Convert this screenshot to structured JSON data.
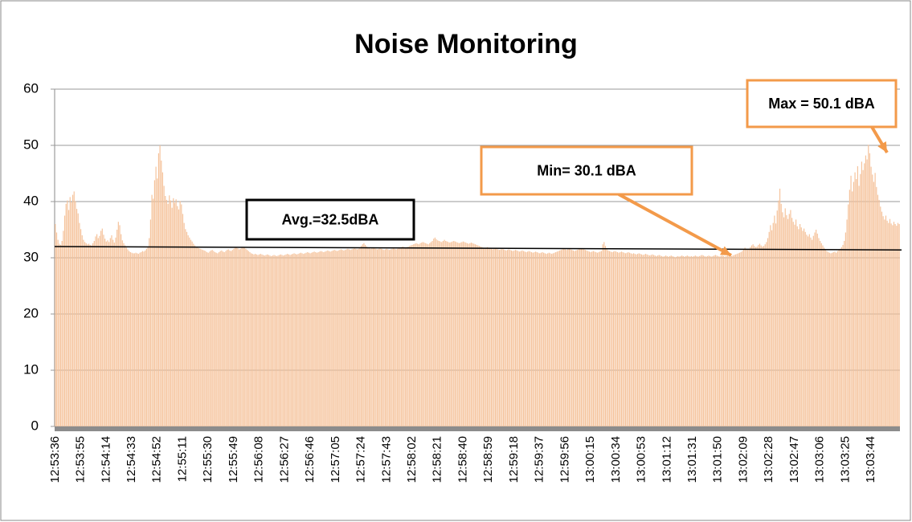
{
  "chart_data": {
    "type": "bar",
    "title": "Noise Monitoring",
    "color": "#f5c29a",
    "ylim": [
      0,
      60
    ],
    "yticks": [
      0,
      10,
      20,
      30,
      40,
      50,
      60
    ],
    "grid": true,
    "trend_line": [
      32.0,
      31.4
    ],
    "annotations": [
      {
        "text": "Avg.=32.5dBA"
      },
      {
        "text": "Min= 30.1 dBA"
      },
      {
        "text": "Max = 50.1 dBA"
      }
    ],
    "categories": [
      "12:53:36",
      null,
      null,
      null,
      null,
      null,
      null,
      null,
      null,
      null,
      null,
      null,
      null,
      null,
      null,
      null,
      null,
      null,
      null,
      "12:53:55",
      null,
      null,
      null,
      null,
      null,
      null,
      null,
      null,
      null,
      null,
      null,
      null,
      null,
      null,
      null,
      null,
      null,
      null,
      "12:54:14",
      null,
      null,
      null,
      null,
      null,
      null,
      null,
      null,
      null,
      null,
      null,
      null,
      null,
      null,
      null,
      null,
      null,
      null,
      "12:54:33",
      null,
      null,
      null,
      null,
      null,
      null,
      null,
      null,
      null,
      null,
      null,
      null,
      null,
      null,
      null,
      null,
      null,
      null,
      "12:54:52",
      null,
      null,
      null,
      null,
      null,
      null,
      null,
      null,
      null,
      null,
      null,
      null,
      null,
      null,
      null,
      null,
      null,
      null,
      "12:55:11",
      null,
      null,
      null,
      null,
      null,
      null,
      null,
      null,
      null,
      null,
      null,
      null,
      null,
      null,
      null,
      null,
      null,
      null,
      "12:55:30",
      null,
      null,
      null,
      null,
      null,
      null,
      null,
      null,
      null,
      null,
      null,
      null,
      null,
      null,
      null,
      null,
      null,
      null,
      "12:55:49",
      null,
      null,
      null,
      null,
      null,
      null,
      null,
      null,
      null,
      null,
      null,
      null,
      null,
      null,
      null,
      null,
      null,
      null,
      "12:56:08",
      null,
      null,
      null,
      null,
      null,
      null,
      null,
      null,
      null,
      null,
      null,
      null,
      null,
      null,
      null,
      null,
      null,
      null,
      "12:56:27",
      null,
      null,
      null,
      null,
      null,
      null,
      null,
      null,
      null,
      null,
      null,
      null,
      null,
      null,
      null,
      null,
      null,
      null,
      "12:56:46",
      null,
      null,
      null,
      null,
      null,
      null,
      null,
      null,
      null,
      null,
      null,
      null,
      null,
      null,
      null,
      null,
      null,
      null,
      "12:57:05",
      null,
      null,
      null,
      null,
      null,
      null,
      null,
      null,
      null,
      null,
      null,
      null,
      null,
      null,
      null,
      null,
      null,
      null,
      "12:57:24",
      null,
      null,
      null,
      null,
      null,
      null,
      null,
      null,
      null,
      null,
      null,
      null,
      null,
      null,
      null,
      null,
      null,
      null,
      "12:57:43",
      null,
      null,
      null,
      null,
      null,
      null,
      null,
      null,
      null,
      null,
      null,
      null,
      null,
      null,
      null,
      null,
      null,
      null,
      "12:58:02",
      null,
      null,
      null,
      null,
      null,
      null,
      null,
      null,
      null,
      null,
      null,
      null,
      null,
      null,
      null,
      null,
      null,
      null,
      "12:58:21",
      null,
      null,
      null,
      null,
      null,
      null,
      null,
      null,
      null,
      null,
      null,
      null,
      null,
      null,
      null,
      null,
      null,
      null,
      "12:58:40",
      null,
      null,
      null,
      null,
      null,
      null,
      null,
      null,
      null,
      null,
      null,
      null,
      null,
      null,
      null,
      null,
      null,
      null,
      "12:58:59",
      null,
      null,
      null,
      null,
      null,
      null,
      null,
      null,
      null,
      null,
      null,
      null,
      null,
      null,
      null,
      null,
      null,
      null,
      "12:59:18",
      null,
      null,
      null,
      null,
      null,
      null,
      null,
      null,
      null,
      null,
      null,
      null,
      null,
      null,
      null,
      null,
      null,
      null,
      "12:59:37",
      null,
      null,
      null,
      null,
      null,
      null,
      null,
      null,
      null,
      null,
      null,
      null,
      null,
      null,
      null,
      null,
      null,
      null,
      "12:59:56",
      null,
      null,
      null,
      null,
      null,
      null,
      null,
      null,
      null,
      null,
      null,
      null,
      null,
      null,
      null,
      null,
      null,
      null,
      "13:00:15",
      null,
      null,
      null,
      null,
      null,
      null,
      null,
      null,
      null,
      null,
      null,
      null,
      null,
      null,
      null,
      null,
      null,
      null,
      "13:00:34",
      null,
      null,
      null,
      null,
      null,
      null,
      null,
      null,
      null,
      null,
      null,
      null,
      null,
      null,
      null,
      null,
      null,
      null,
      "13:00:53",
      null,
      null,
      null,
      null,
      null,
      null,
      null,
      null,
      null,
      null,
      null,
      null,
      null,
      null,
      null,
      null,
      null,
      null,
      "13:01:12",
      null,
      null,
      null,
      null,
      null,
      null,
      null,
      null,
      null,
      null,
      null,
      null,
      null,
      null,
      null,
      null,
      null,
      null,
      "13:01:31",
      null,
      null,
      null,
      null,
      null,
      null,
      null,
      null,
      null,
      null,
      null,
      null,
      null,
      null,
      null,
      null,
      null,
      null,
      "13:01:50",
      null,
      null,
      null,
      null,
      null,
      null,
      null,
      null,
      null,
      null,
      null,
      null,
      null,
      null,
      null,
      null,
      null,
      null,
      "13:02:09",
      null,
      null,
      null,
      null,
      null,
      null,
      null,
      null,
      null,
      null,
      null,
      null,
      null,
      null,
      null,
      null,
      null,
      null,
      "13:02:28",
      null,
      null,
      null,
      null,
      null,
      null,
      null,
      null,
      null,
      null,
      null,
      null,
      null,
      null,
      null,
      null,
      null,
      null,
      "13:02:47",
      null,
      null,
      null,
      null,
      null,
      null,
      null,
      null,
      null,
      null,
      null,
      null,
      null,
      null,
      null,
      null,
      null,
      null,
      "13:03:06",
      null,
      null,
      null,
      null,
      null,
      null,
      null,
      null,
      null,
      null,
      null,
      null,
      null,
      null,
      null,
      null,
      null,
      null,
      "13:03:25",
      null,
      null,
      null,
      null,
      null,
      null,
      null,
      null,
      null,
      null,
      null,
      null,
      null,
      null,
      null,
      null,
      null,
      null,
      "13:03:44",
      null,
      null,
      null,
      null,
      null,
      null,
      null,
      null,
      null,
      null,
      null,
      null,
      null,
      null,
      null,
      null,
      null,
      null,
      null,
      null,
      null
    ],
    "values": [
      36.0,
      34.5,
      33.2,
      32.5,
      32.3,
      33.0,
      34.8,
      37.5,
      39.6,
      40.2,
      38.5,
      40.8,
      39.9,
      41.2,
      41.8,
      40.1,
      38.7,
      37.9,
      36.2,
      35.1,
      34.0,
      33.2,
      32.8,
      32.6,
      32.4,
      32.5,
      32.3,
      32.2,
      32.6,
      33.0,
      33.8,
      34.2,
      33.5,
      33.9,
      34.8,
      35.2,
      34.1,
      33.4,
      32.9,
      33.1,
      32.8,
      33.5,
      34.0,
      33.2,
      32.7,
      33.6,
      35.0,
      36.4,
      35.8,
      34.2,
      33.1,
      32.6,
      32.2,
      31.8,
      31.5,
      31.2,
      31.0,
      30.9,
      30.8,
      30.8,
      30.9,
      30.8,
      30.7,
      30.9,
      31.0,
      31.2,
      31.1,
      31.3,
      31.6,
      32.0,
      33.5,
      36.8,
      41.2,
      40.5,
      43.8,
      46.2,
      44.1,
      48.6,
      50.0,
      47.3,
      45.2,
      42.8,
      41.0,
      40.3,
      39.6,
      41.1,
      40.2,
      38.9,
      40.6,
      39.8,
      40.4,
      39.2,
      38.6,
      40.1,
      39.5,
      37.8,
      36.2,
      35.1,
      34.6,
      34.0,
      33.6,
      33.2,
      32.9,
      32.5,
      32.2,
      32.0,
      31.8,
      31.7,
      31.6,
      31.5,
      31.4,
      31.3,
      31.2,
      31.0,
      30.9,
      31.1,
      31.3,
      31.4,
      31.2,
      31.0,
      30.9,
      30.8,
      31.0,
      31.2,
      31.3,
      31.1,
      31.0,
      31.2,
      31.4,
      31.5,
      31.3,
      31.2,
      31.4,
      31.6,
      31.8,
      31.9,
      31.7,
      31.5,
      31.6,
      31.8,
      31.9,
      31.8,
      31.6,
      31.4,
      31.2,
      31.0,
      30.8,
      30.7,
      30.6,
      30.7,
      30.6,
      30.5,
      30.6,
      30.7,
      30.6,
      30.5,
      30.4,
      30.5,
      30.6,
      30.5,
      30.4,
      30.3,
      30.4,
      30.5,
      30.4,
      30.3,
      30.4,
      30.5,
      30.6,
      30.5,
      30.4,
      30.5,
      30.6,
      30.7,
      30.6,
      30.5,
      30.6,
      30.7,
      30.8,
      30.7,
      30.6,
      30.7,
      30.8,
      30.9,
      30.8,
      30.7,
      30.8,
      30.9,
      31.0,
      30.9,
      30.8,
      30.9,
      31.0,
      31.1,
      31.0,
      30.9,
      31.0,
      31.1,
      31.2,
      31.1,
      31.0,
      31.1,
      31.2,
      31.3,
      31.2,
      31.1,
      31.2,
      31.3,
      31.4,
      31.3,
      31.2,
      31.3,
      31.4,
      31.5,
      31.4,
      31.3,
      31.4,
      31.5,
      31.6,
      31.5,
      31.4,
      31.5,
      31.6,
      31.7,
      31.6,
      31.5,
      31.6,
      31.8,
      32.1,
      32.4,
      32.6,
      32.3,
      32.0,
      31.8,
      31.7,
      31.6,
      31.7,
      31.8,
      31.7,
      31.6,
      31.5,
      31.6,
      31.7,
      31.6,
      31.5,
      31.4,
      31.5,
      31.6,
      31.5,
      31.4,
      31.5,
      31.6,
      31.7,
      31.6,
      31.5,
      31.6,
      31.7,
      31.8,
      31.9,
      32.0,
      31.9,
      31.8,
      31.9,
      32.0,
      32.1,
      32.2,
      32.3,
      32.4,
      32.5,
      32.6,
      32.5,
      32.4,
      32.6,
      32.7,
      32.8,
      32.7,
      32.6,
      32.5,
      32.4,
      32.6,
      32.8,
      33.0,
      33.4,
      33.6,
      33.3,
      33.1,
      33.0,
      32.9,
      32.8,
      33.0,
      33.2,
      33.0,
      32.9,
      32.8,
      32.7,
      32.8,
      32.9,
      33.0,
      32.9,
      32.8,
      32.7,
      32.6,
      32.7,
      32.8,
      32.9,
      32.8,
      32.7,
      32.6,
      32.5,
      32.6,
      32.7,
      32.6,
      32.5,
      32.4,
      32.3,
      32.2,
      32.1,
      32.0,
      31.9,
      31.8,
      31.7,
      31.8,
      31.9,
      31.8,
      31.7,
      31.6,
      31.5,
      31.6,
      31.7,
      31.6,
      31.5,
      31.4,
      31.5,
      31.6,
      31.5,
      31.4,
      31.3,
      31.4,
      31.5,
      31.4,
      31.3,
      31.2,
      31.3,
      31.4,
      31.3,
      31.2,
      31.1,
      31.2,
      31.3,
      31.2,
      31.1,
      31.0,
      31.1,
      31.2,
      31.1,
      31.0,
      30.9,
      31.0,
      31.1,
      31.0,
      30.9,
      30.8,
      30.9,
      31.0,
      30.9,
      30.8,
      30.7,
      30.8,
      30.9,
      30.8,
      30.7,
      30.8,
      30.9,
      31.0,
      31.1,
      31.2,
      31.3,
      31.4,
      31.5,
      31.6,
      31.5,
      31.4,
      31.5,
      31.6,
      31.5,
      31.4,
      31.3,
      31.2,
      31.3,
      31.4,
      31.5,
      31.6,
      31.7,
      31.6,
      31.5,
      31.4,
      31.3,
      31.2,
      31.1,
      31.0,
      31.1,
      31.2,
      31.1,
      31.0,
      30.9,
      31.0,
      31.1,
      31.2,
      32.4,
      32.8,
      32.1,
      31.6,
      31.3,
      31.2,
      31.1,
      31.0,
      31.1,
      31.2,
      31.1,
      31.0,
      30.9,
      31.0,
      31.1,
      31.0,
      30.9,
      30.8,
      30.9,
      31.0,
      30.9,
      30.8,
      30.7,
      30.8,
      30.7,
      30.6,
      30.7,
      30.8,
      30.7,
      30.6,
      30.5,
      30.6,
      30.7,
      30.6,
      30.5,
      30.4,
      30.5,
      30.6,
      30.5,
      30.4,
      30.3,
      30.4,
      30.5,
      30.4,
      30.3,
      30.2,
      30.3,
      30.4,
      30.3,
      30.2,
      30.3,
      30.4,
      30.3,
      30.2,
      30.1,
      30.2,
      30.3,
      30.2,
      30.3,
      30.4,
      30.3,
      30.2,
      30.3,
      30.4,
      30.3,
      30.2,
      30.3,
      30.2,
      30.3,
      30.4,
      30.3,
      30.2,
      30.3,
      30.4,
      30.5,
      30.4,
      30.3,
      30.2,
      30.3,
      30.4,
      30.3,
      30.2,
      30.3,
      30.4,
      30.5,
      30.4,
      30.3,
      30.2,
      30.3,
      30.4,
      30.3,
      30.2,
      30.3,
      30.4,
      30.3,
      30.2,
      30.3,
      30.4,
      30.5,
      30.6,
      30.7,
      30.8,
      30.9,
      31.0,
      31.2,
      31.5,
      31.8,
      31.6,
      31.4,
      31.6,
      31.9,
      32.2,
      32.4,
      32.1,
      31.9,
      32.0,
      32.3,
      32.5,
      32.2,
      32.0,
      32.1,
      32.4,
      32.8,
      33.5,
      34.6,
      35.8,
      34.9,
      36.2,
      37.5,
      36.1,
      38.4,
      40.2,
      42.3,
      39.6,
      38.1,
      37.2,
      38.8,
      37.6,
      36.9,
      37.8,
      38.5,
      37.1,
      36.4,
      35.9,
      36.8,
      35.6,
      35.1,
      36.0,
      35.4,
      34.8,
      35.2,
      34.6,
      34.1,
      33.8,
      34.2,
      33.6,
      33.2,
      33.9,
      34.5,
      35.0,
      34.3,
      33.5,
      33.0,
      32.6,
      32.2,
      31.8,
      31.5,
      31.2,
      31.0,
      30.9,
      30.8,
      30.9,
      31.0,
      31.1,
      30.9,
      31.2,
      31.4,
      31.6,
      31.9,
      32.3,
      33.0,
      34.5,
      36.8,
      39.5,
      42.1,
      44.6,
      41.8,
      43.5,
      45.2,
      44.0,
      46.3,
      42.8,
      44.9,
      47.1,
      45.6,
      46.8,
      48.2,
      47.5,
      50.1,
      48.6,
      46.2,
      44.8,
      43.5,
      45.1,
      42.6,
      41.2,
      40.3,
      39.1,
      38.2,
      37.4,
      36.8,
      37.5,
      36.6,
      36.2,
      36.9,
      36.1,
      35.8,
      36.4,
      36.0,
      35.7,
      36.2,
      36.0
    ]
  }
}
